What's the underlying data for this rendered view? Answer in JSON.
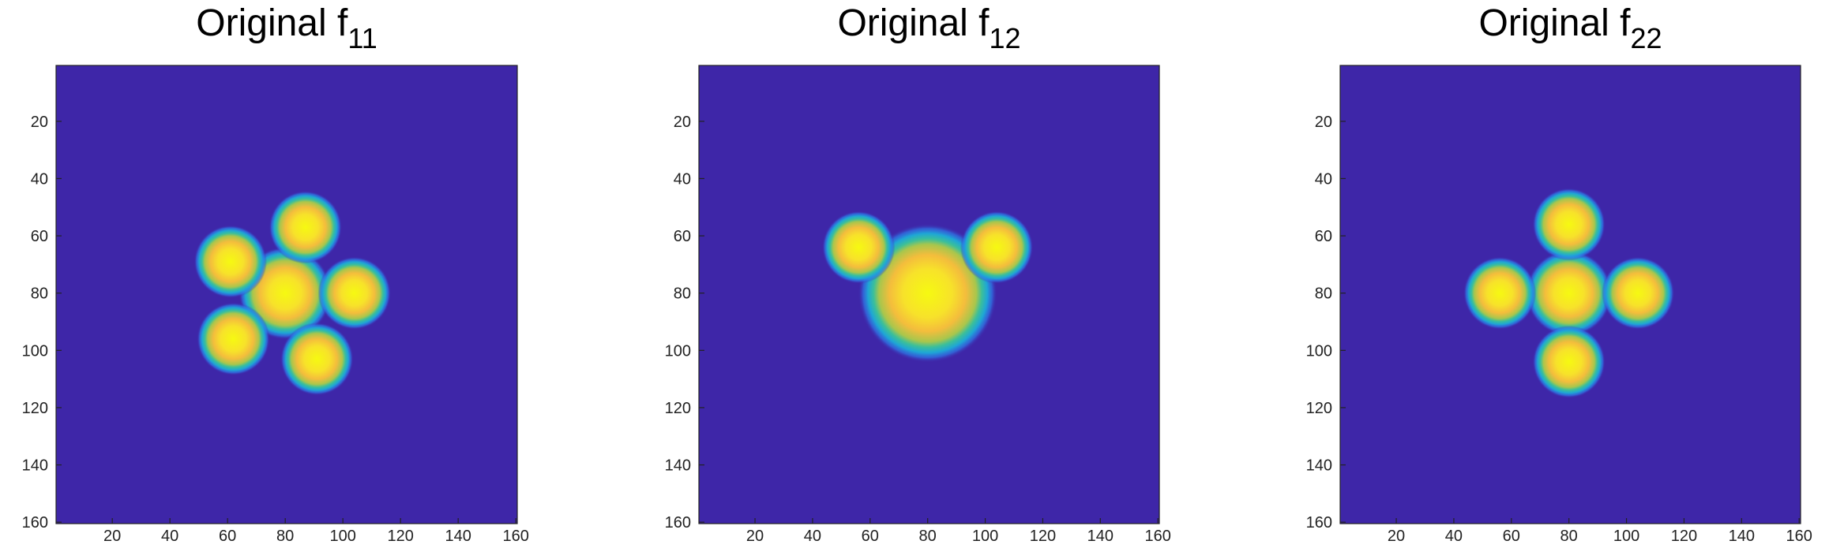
{
  "chart_data": [
    {
      "type": "image",
      "title": "Original f",
      "title_sub": "11",
      "xlim": [
        0.5,
        160.5
      ],
      "ylim": [
        0.5,
        160.5
      ],
      "y_reversed": true,
      "xticks": [
        20,
        40,
        60,
        80,
        100,
        120,
        140,
        160
      ],
      "yticks": [
        20,
        40,
        60,
        80,
        100,
        120,
        140,
        160
      ],
      "background": "#3e26a8",
      "blobs": {
        "x": [
          80,
          87,
          61,
          104,
          62,
          91
        ],
        "y": [
          80,
          57,
          69,
          80,
          96,
          103
        ],
        "r": [
          14,
          11,
          11,
          11,
          11,
          11
        ]
      }
    },
    {
      "type": "image",
      "title": "Original f",
      "title_sub": "12",
      "xlim": [
        0.5,
        160.5
      ],
      "ylim": [
        0.5,
        160.5
      ],
      "y_reversed": true,
      "xticks": [
        20,
        40,
        60,
        80,
        100,
        120,
        140,
        160
      ],
      "yticks": [
        20,
        40,
        60,
        80,
        100,
        120,
        140,
        160
      ],
      "background": "#3e26a8",
      "blobs": {
        "x": [
          80,
          56,
          104
        ],
        "y": [
          80,
          64,
          64
        ],
        "r": [
          21,
          11,
          11
        ]
      }
    },
    {
      "type": "image",
      "title": "Original f",
      "title_sub": "22",
      "xlim": [
        0.5,
        160.5
      ],
      "ylim": [
        0.5,
        160.5
      ],
      "y_reversed": true,
      "xticks": [
        20,
        40,
        60,
        80,
        100,
        120,
        140,
        160
      ],
      "yticks": [
        20,
        40,
        60,
        80,
        100,
        120,
        140,
        160
      ],
      "background": "#3e26a8",
      "blobs": {
        "x": [
          80,
          80,
          56,
          104,
          80
        ],
        "y": [
          80,
          56,
          80,
          80,
          104
        ],
        "r": [
          13,
          11,
          11,
          11,
          11
        ]
      }
    }
  ]
}
